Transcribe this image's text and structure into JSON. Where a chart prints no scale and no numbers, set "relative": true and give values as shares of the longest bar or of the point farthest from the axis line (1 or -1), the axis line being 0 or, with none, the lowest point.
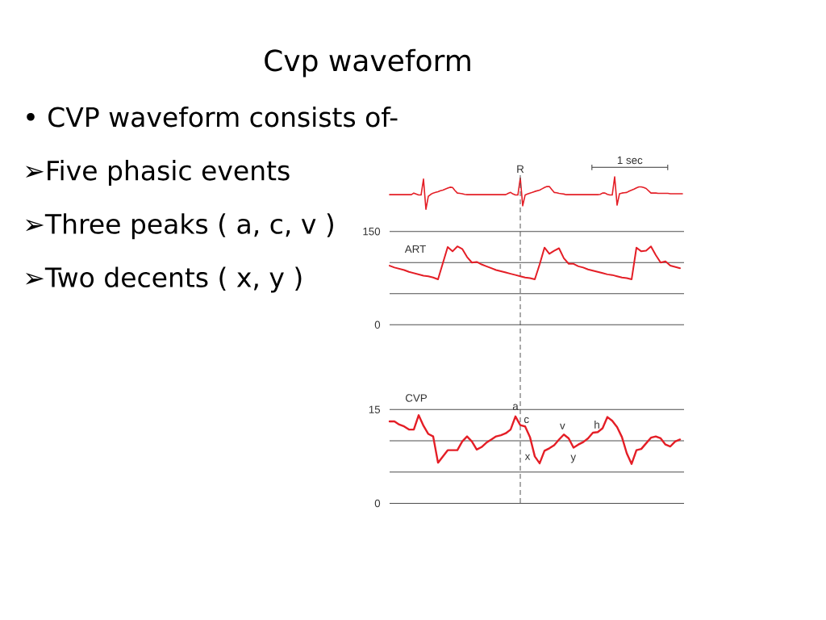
{
  "chart_data": [
    {
      "type": "other",
      "title": "Cvp waveform",
      "annotations": [
        "• CVP waveform consists of-",
        "➢Five phasic events",
        "➢Three peaks ( a, c, v )",
        "➢Two decents ( x, y )"
      ]
    },
    {
      "type": "line",
      "relative": true,
      "tick_labels": false,
      "categories": [
        null,
        null,
        null,
        null,
        null,
        null,
        null,
        null,
        null,
        null,
        null,
        null,
        null,
        null,
        null,
        null,
        null,
        null,
        null,
        null,
        null,
        null,
        null,
        null,
        null,
        null,
        null,
        null,
        null,
        null,
        null,
        null,
        null,
        null,
        null,
        null,
        null,
        null,
        null,
        null,
        null,
        null,
        null,
        null,
        null,
        null,
        null,
        null,
        null,
        null,
        null,
        null,
        null,
        null,
        null,
        null,
        null,
        null,
        null,
        null,
        null,
        null,
        null,
        null,
        null,
        null,
        null,
        null,
        null,
        null,
        null,
        null,
        null,
        null,
        null,
        null,
        null,
        null,
        null,
        null,
        null,
        null,
        null,
        null,
        null,
        null,
        null,
        null,
        null,
        null,
        null,
        null,
        null,
        null,
        null,
        null,
        null,
        null,
        null,
        null,
        null,
        null,
        null,
        null,
        null,
        null,
        null,
        null,
        null,
        null,
        null,
        null,
        null,
        null,
        null,
        null,
        null,
        null,
        null,
        null,
        null,
        null
      ],
      "series": [
        {
          "color": "#e41e26",
          "values": [
            0.45,
            0.45,
            0.45,
            0.45,
            0.45,
            0.45,
            0.45,
            0.45,
            0.45,
            0.45,
            0.5,
            0.47,
            0.44,
            0.44,
            0.93,
            0.0,
            0.4,
            0.46,
            0.5,
            0.52,
            0.54,
            0.57,
            0.59,
            0.62,
            0.65,
            0.68,
            0.67,
            0.58,
            0.5,
            0.49,
            0.48,
            0.46,
            0.45,
            0.45,
            0.45,
            0.45,
            0.45,
            0.45,
            0.45,
            0.45,
            0.45,
            0.45,
            0.45,
            0.45,
            0.45,
            0.45,
            0.45,
            0.45,
            0.45,
            0.49,
            0.52,
            0.47,
            0.44,
            0.44,
            0.96,
            0.11,
            0.44,
            0.47,
            0.5,
            0.52,
            0.55,
            0.57,
            0.59,
            0.63,
            0.67,
            0.7,
            0.7,
            0.61,
            0.52,
            0.51,
            0.49,
            0.48,
            0.47,
            0.45,
            0.45,
            0.45,
            0.45,
            0.45,
            0.45,
            0.45,
            0.45,
            0.45,
            0.45,
            0.45,
            0.45,
            0.45,
            0.45,
            0.46,
            0.5,
            0.5,
            0.46,
            0.44,
            0.44,
            1.0,
            0.13,
            0.48,
            0.5,
            0.51,
            0.52,
            0.56,
            0.59,
            0.62,
            0.66,
            0.69,
            0.69,
            0.67,
            0.64,
            0.57,
            0.5,
            0.5,
            0.5,
            0.49,
            0.49,
            0.49,
            0.49,
            0.49,
            0.48,
            0.48,
            0.48,
            0.48,
            0.48,
            0.48
          ]
        }
      ],
      "annotations": [
        "R",
        "1 sec"
      ]
    },
    {
      "type": "line",
      "ylim": [
        0,
        150
      ],
      "yticks": [
        0,
        {
          "value": 50,
          "label": null
        },
        {
          "value": 100,
          "label": null
        },
        150
      ],
      "grid": "y",
      "tick_labels": "y",
      "categories": [
        null,
        null,
        null,
        null,
        null,
        null,
        null,
        null,
        null,
        null,
        null,
        null,
        null,
        null,
        null,
        null,
        null,
        null,
        null,
        null,
        null,
        null,
        null,
        null,
        null,
        null,
        null,
        null,
        null,
        null,
        null,
        null,
        null,
        null,
        null,
        null,
        null,
        null,
        null,
        null,
        null,
        null,
        null,
        null,
        null,
        null,
        null,
        null,
        null,
        null,
        null,
        null,
        null,
        null,
        null,
        null,
        null,
        null,
        null,
        null,
        null
      ],
      "series": [
        {
          "name": "ART",
          "color": "#e41e26",
          "values": [
            95,
            92,
            90,
            88,
            85,
            83,
            81,
            79,
            78,
            76,
            73,
            99,
            125,
            118,
            126,
            122,
            109,
            100,
            101,
            97,
            94,
            91,
            88,
            86,
            84,
            82,
            80,
            78,
            76,
            75,
            73,
            97,
            124,
            114,
            119,
            123,
            107,
            98,
            98,
            94,
            92,
            89,
            87,
            85,
            83,
            81,
            80,
            78,
            76,
            75,
            73,
            124,
            118,
            119,
            126,
            112,
            100,
            102,
            95,
            93,
            91
          ]
        }
      ]
    },
    {
      "type": "line",
      "ylim": [
        0,
        15
      ],
      "yticks": [
        0,
        {
          "value": 5,
          "label": null
        },
        {
          "value": 10,
          "label": null
        },
        15
      ],
      "grid": "y",
      "tick_labels": "y",
      "categories": [
        null,
        null,
        null,
        null,
        null,
        null,
        null,
        null,
        null,
        null,
        null,
        null,
        null,
        null,
        null,
        null,
        null,
        null,
        null,
        null,
        null,
        null,
        null,
        null,
        null,
        null,
        null,
        null,
        null,
        null,
        null,
        null,
        null,
        null,
        null,
        null,
        null,
        null,
        null,
        null,
        null,
        null,
        null,
        null,
        null,
        null,
        null,
        null,
        null,
        null,
        null,
        null,
        null,
        null,
        null,
        null,
        null,
        null,
        null,
        null,
        null
      ],
      "series": [
        {
          "name": "CVP",
          "color": "#e41e26",
          "values": [
            13.1,
            13.1,
            12.6,
            12.3,
            11.8,
            11.8,
            14.1,
            12.4,
            11.1,
            10.7,
            6.5,
            7.5,
            8.5,
            8.5,
            8.5,
            9.9,
            10.7,
            9.9,
            8.6,
            9.0,
            9.7,
            10.2,
            10.7,
            10.9,
            11.2,
            11.8,
            13.9,
            12.5,
            12.3,
            10.6,
            7.5,
            6.4,
            8.4,
            8.8,
            9.3,
            10.2,
            11.0,
            10.4,
            8.9,
            9.4,
            9.8,
            10.4,
            11.3,
            11.4,
            12.0,
            13.8,
            13.2,
            12.2,
            10.6,
            8.0,
            6.3,
            8.5,
            8.7,
            9.6,
            10.5,
            10.7,
            10.4,
            9.4,
            9.1,
            9.9,
            10.2
          ]
        }
      ],
      "annotations": [
        "a",
        "c",
        "x",
        "v",
        "y",
        "h"
      ]
    }
  ]
}
